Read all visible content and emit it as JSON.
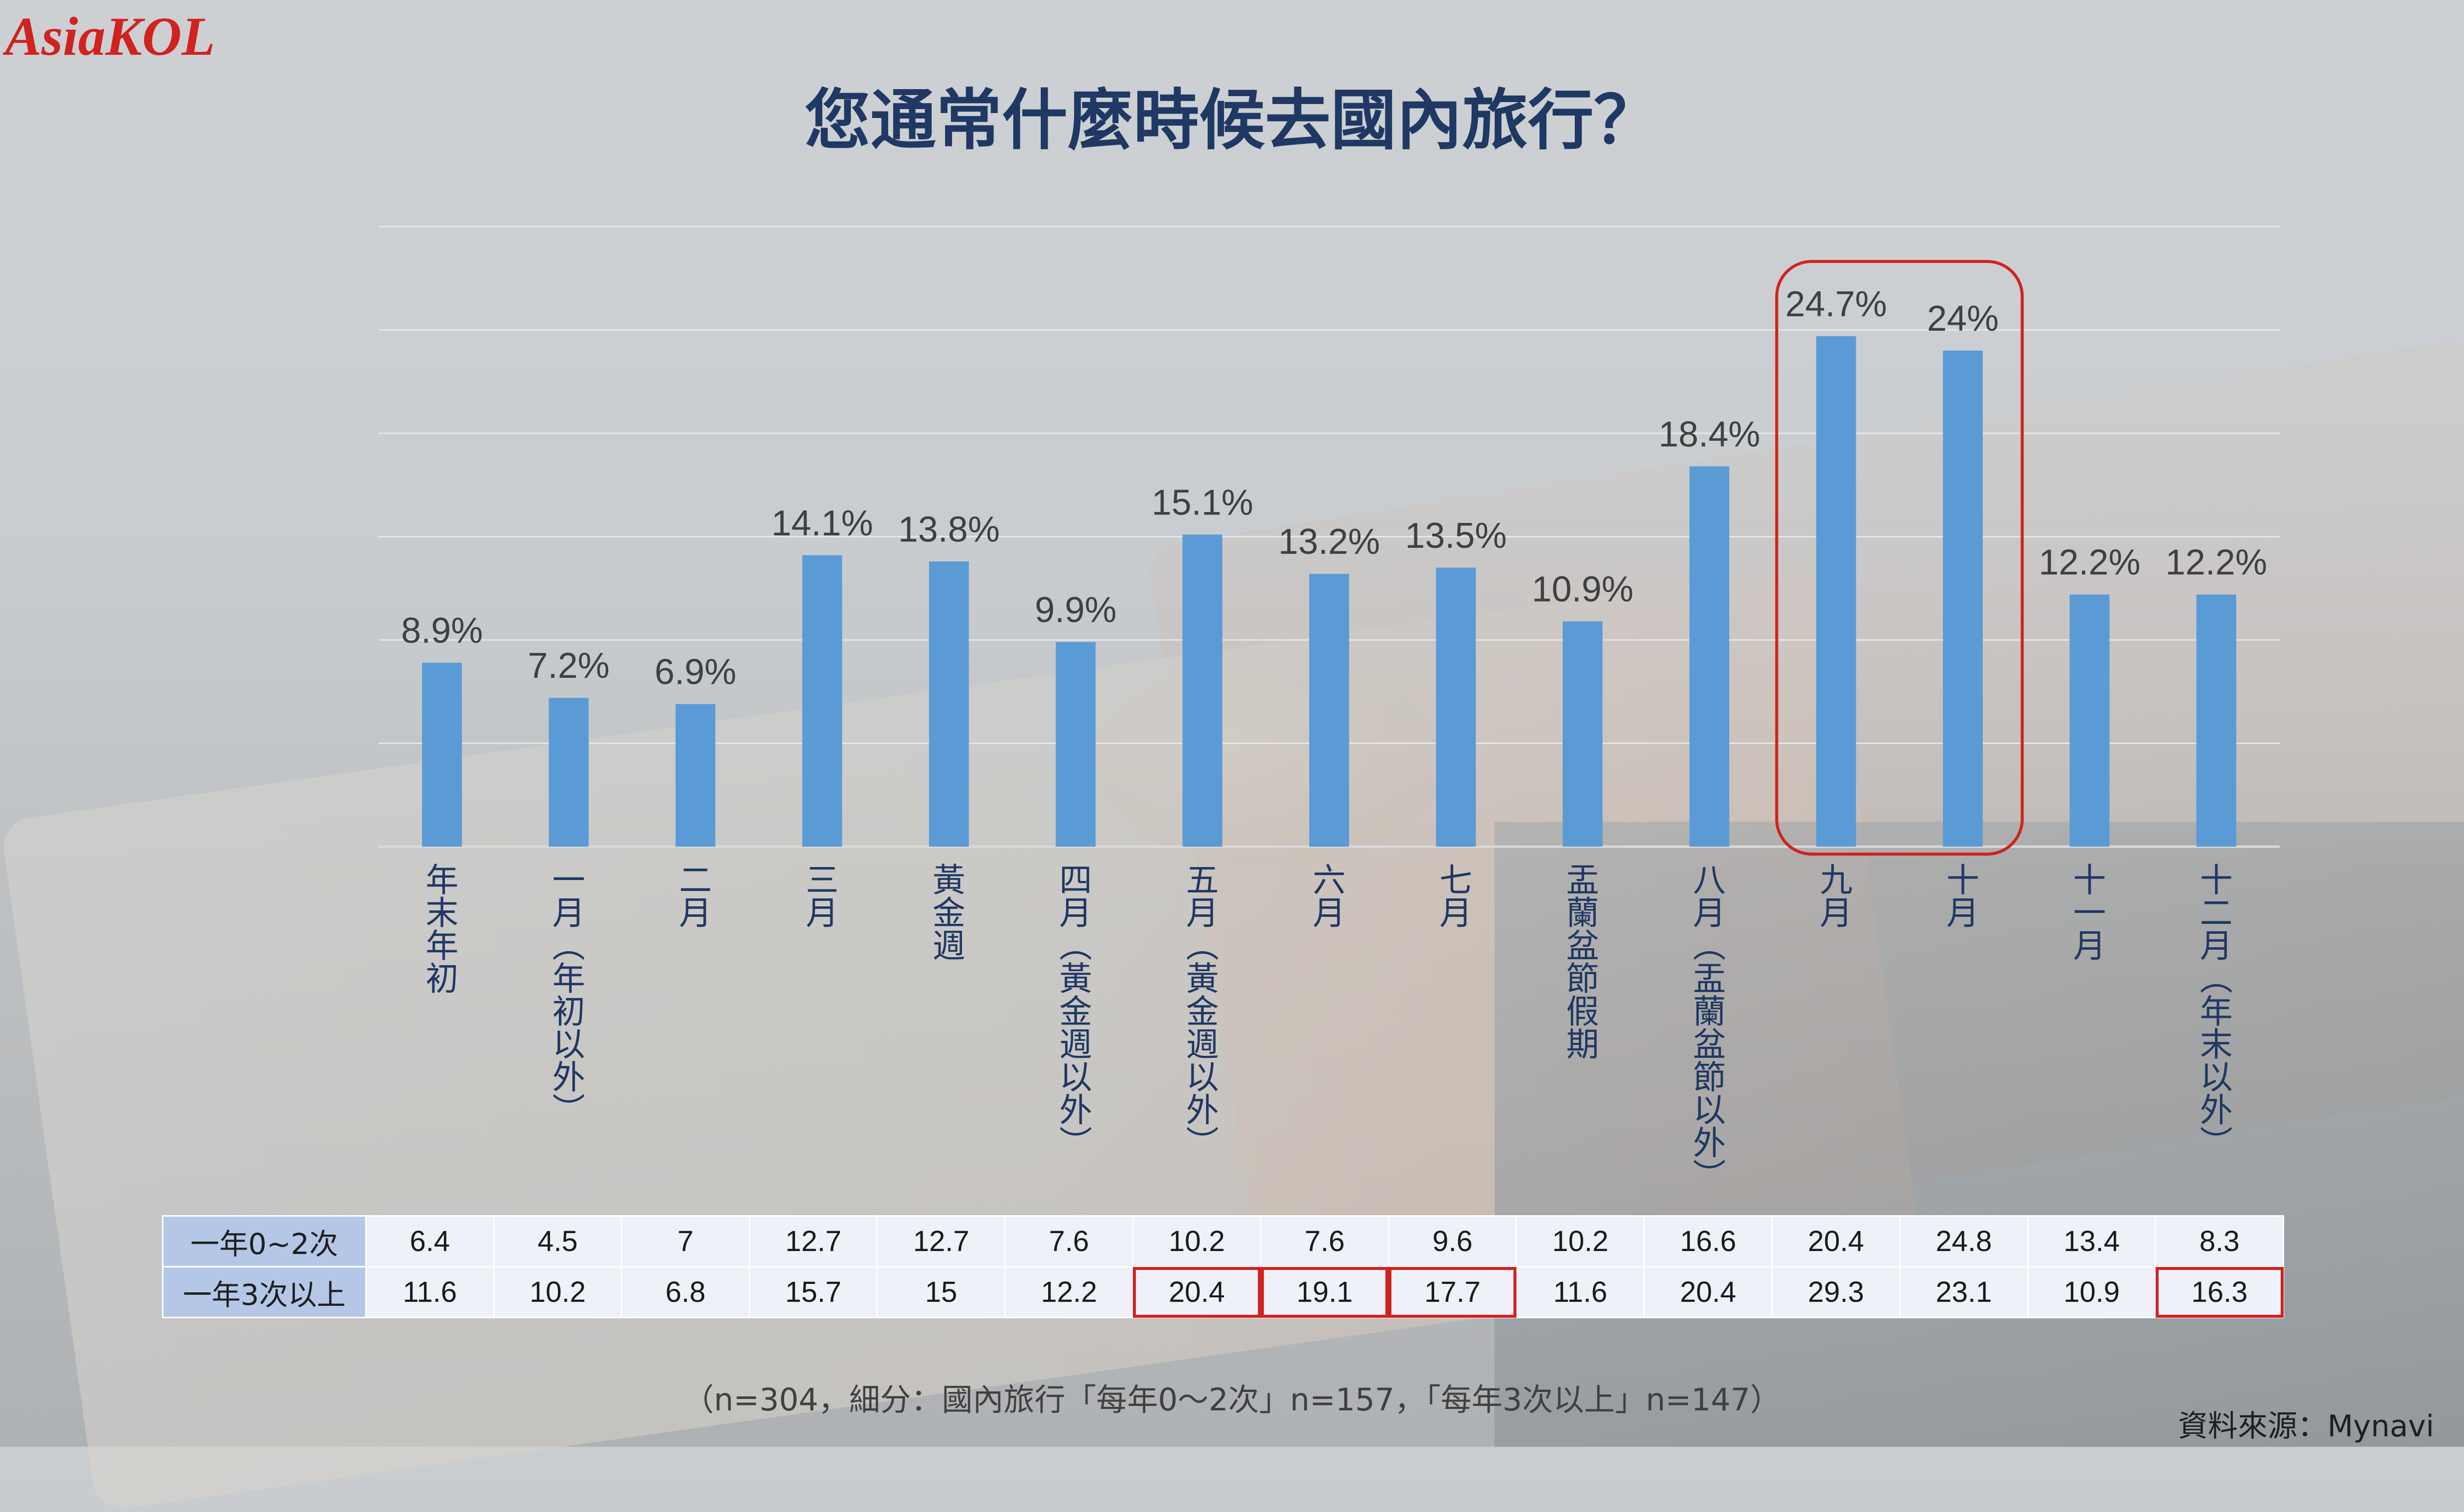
{
  "brand": {
    "logo_text": "AsiaKOL",
    "logo_color": "#d0231f"
  },
  "title": "您通常什麼時候去國內旅行？",
  "chart_data": {
    "type": "bar",
    "title": "您通常什麼時候去國內旅行？",
    "categories": [
      "年末年初",
      "一月（年初以外）",
      "二月",
      "三月",
      "黃金週",
      "四月（黃金週以外）",
      "五月（黃金週以外）",
      "六月",
      "七月",
      "盂蘭盆節假期",
      "八月（盂蘭盆節以外）",
      "九月",
      "十月",
      "十一月",
      "十二月（年末以外）"
    ],
    "values": [
      8.9,
      7.2,
      6.9,
      14.1,
      13.8,
      9.9,
      15.1,
      13.2,
      13.5,
      10.9,
      18.4,
      24.7,
      24,
      12.2,
      12.2
    ],
    "value_labels": [
      "8.9%",
      "7.2%",
      "6.9%",
      "14.1%",
      "13.8%",
      "9.9%",
      "15.1%",
      "13.2%",
      "13.5%",
      "10.9%",
      "18.4%",
      "24.7%",
      "24%",
      "12.2%",
      "12.2%"
    ],
    "ylim": [
      0,
      30
    ],
    "grid": true,
    "bar_color": "#5b9bd5",
    "highlight_categories": [
      "九月",
      "十月"
    ],
    "highlight_color": "#d0231f"
  },
  "table": {
    "rows": [
      {
        "label": "一年0~2次",
        "values": [
          "6.4",
          "4.5",
          "7",
          "12.7",
          "12.7",
          "7.6",
          "10.2",
          "7.6",
          "9.6",
          "10.2",
          "16.6",
          "20.4",
          "24.8",
          "13.4",
          "8.3"
        ]
      },
      {
        "label": "一年3次以上",
        "values": [
          "11.6",
          "10.2",
          "6.8",
          "15.7",
          "15",
          "12.2",
          "20.4",
          "19.1",
          "17.7",
          "11.6",
          "20.4",
          "29.3",
          "23.1",
          "10.9",
          "16.3"
        ]
      }
    ],
    "highlighted_cells": [
      "五月（黃金週以外）",
      "六月",
      "七月",
      "十二月（年末以外）"
    ]
  },
  "note": "（n=304，細分：國內旅行「每年0～2次」n=157，「每年3次以上」n=147）",
  "source": "資料來源：Mynavi"
}
